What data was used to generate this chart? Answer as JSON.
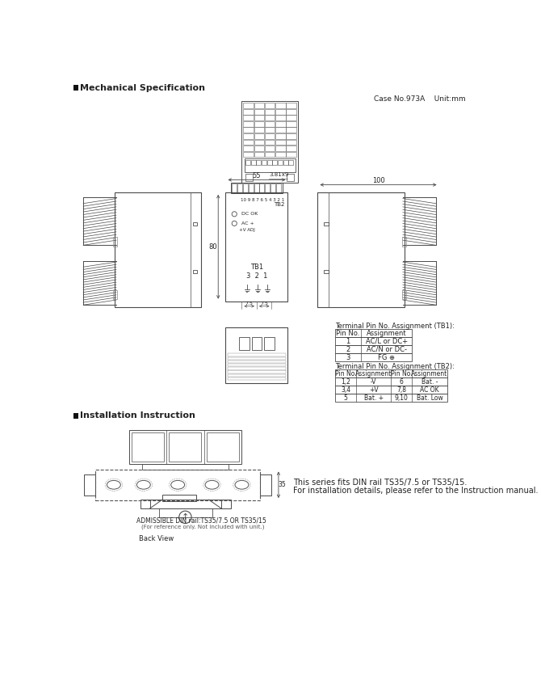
{
  "title_mech": "Mechanical Specification",
  "title_install": "Installation Instruction",
  "case_info": "Case No.973A    Unit:mm",
  "bg_color": "#ffffff",
  "line_color": "#4a4a4a",
  "tb1_title": "Terminal Pin No. Assignment (TB1):",
  "tb1_headers": [
    "Pin No.",
    "Assignment"
  ],
  "tb1_rows": [
    [
      "1",
      "AC/L or DC+"
    ],
    [
      "2",
      "AC/N or DC-"
    ],
    [
      "3",
      "FG ⊕"
    ]
  ],
  "tb2_title": "Terminal Pin No. Assignment (TB2):",
  "tb2_headers": [
    "Pin No.",
    "Assignment",
    "Pin No.",
    "Assignment"
  ],
  "tb2_rows": [
    [
      "1,2",
      "-V",
      "6",
      "Bat. -"
    ],
    [
      "3,4",
      "+V",
      "7,8",
      "AC OK"
    ],
    [
      "5",
      "Bat. +",
      "9,10",
      "Bat. Low"
    ]
  ],
  "dim_55": "55",
  "dim_381x9": "3.81x9",
  "dim_80": "80",
  "dim_100": "100",
  "tb2_label": "TB2",
  "tb1_label": "TB1",
  "install_text1": "This series fits DIN rail TS35/7.5 or TS35/15.",
  "install_text2": "For installation details, please refer to the Instruction manual.",
  "admissible_text": "ADMISSIBLE DIN rail:TS35/7.5 OR TS35/15",
  "admissible_text2": "(For reference only. Not included with unit.)",
  "back_view": "Back View",
  "dim_35": "35"
}
